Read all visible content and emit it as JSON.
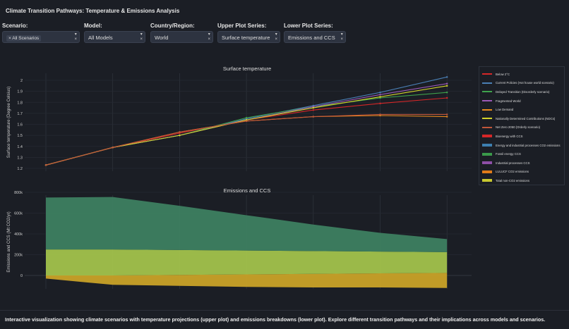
{
  "header": {
    "title": "Climate Transition Pathways: Temperature & Emissions Analysis"
  },
  "filters": [
    {
      "label": "Scenario:",
      "value": "All Scenarios",
      "chip": true
    },
    {
      "label": "Model:",
      "value": "All Models"
    },
    {
      "label": "Country/Region:",
      "value": "World"
    },
    {
      "label": "Upper Plot Series:",
      "value": "Surface temperature"
    },
    {
      "label": "Lower Plot Series:",
      "value": "Emissions and CCS"
    }
  ],
  "chart_data": [
    {
      "type": "line",
      "title": "Surface temperature",
      "ylabel": "Surface temperature (Degree Celsius)",
      "ylim": [
        1.18,
        2.08
      ],
      "yticks": [
        1.2,
        1.3,
        1.4,
        1.5,
        1.6,
        1.7,
        1.8,
        1.9,
        2
      ],
      "grid": true,
      "series": [
        {
          "name": "Below 2°C",
          "color": "#d62728",
          "values": [
            1.23,
            1.39,
            1.52,
            1.64,
            1.73,
            1.79,
            1.84
          ]
        },
        {
          "name": "Current Policies (Hot house world scenario)",
          "color": "#4a7fb5",
          "values": [
            1.23,
            1.39,
            1.5,
            1.65,
            1.77,
            1.89,
            2.03
          ]
        },
        {
          "name": "Delayed Transition (Disorderly scenario)",
          "color": "#3fa34d",
          "values": [
            1.23,
            1.39,
            1.5,
            1.66,
            1.76,
            1.84,
            1.89
          ]
        },
        {
          "name": "Fragmented World",
          "color": "#9b59b6",
          "values": [
            1.23,
            1.39,
            1.5,
            1.64,
            1.76,
            1.87,
            1.97
          ]
        },
        {
          "name": "Low Demand",
          "color": "#e8891c",
          "values": [
            1.23,
            1.39,
            1.53,
            1.63,
            1.67,
            1.68,
            1.67
          ]
        },
        {
          "name": "Nationally Determined Contributions (NDCs)",
          "color": "#d4d42a",
          "values": [
            1.23,
            1.39,
            1.5,
            1.64,
            1.75,
            1.85,
            1.95
          ]
        },
        {
          "name": "Net Zero 2050 (Orderly scenario)",
          "color": "#c0563a",
          "values": [
            1.23,
            1.39,
            1.53,
            1.63,
            1.67,
            1.69,
            1.69
          ]
        }
      ]
    },
    {
      "type": "area",
      "title": "Emissions and CCS",
      "ylabel": "Emissions and CCS (Mt CO2/yr)",
      "ylim": [
        -170000,
        830000
      ],
      "yticks": [
        0,
        200000,
        400000,
        600000,
        800000
      ],
      "ytick_labels": [
        "0",
        "200k",
        "400k",
        "600k",
        "800k"
      ],
      "grid": true,
      "stacked": true,
      "series": [
        {
          "name": "Bioenergy with CCS",
          "color": "#d62728"
        },
        {
          "name": "Energy and industrial processes CO2 emissions",
          "color": "#3d7fb0"
        },
        {
          "name": "Fossil energy CCS",
          "color": "#3a9a4a"
        },
        {
          "name": "Industrial processes CCS",
          "color": "#8e4fa8"
        },
        {
          "name": "LULUCF CO2 emissions",
          "color": "#e07b1a"
        },
        {
          "name": "Total non-CO2 emissions",
          "color": "#c8c830"
        }
      ],
      "bands": [
        {
          "color": "#c9a227",
          "lower": [
            -30000,
            -90000,
            -100000,
            -110000,
            -115000,
            -115000,
            -120000
          ],
          "upper": [
            0,
            0,
            5000,
            10000,
            15000,
            20000,
            25000
          ]
        },
        {
          "color": "#a2c24b",
          "lower": [
            0,
            0,
            5000,
            10000,
            15000,
            20000,
            25000
          ],
          "upper": [
            250000,
            250000,
            245000,
            240000,
            235000,
            230000,
            225000
          ]
        },
        {
          "color": "#3d8060",
          "lower": [
            250000,
            250000,
            245000,
            240000,
            235000,
            230000,
            225000
          ],
          "upper": [
            750000,
            755000,
            670000,
            580000,
            490000,
            410000,
            350000
          ]
        }
      ]
    }
  ],
  "footer": {
    "text": "Interactive visualization showing climate scenarios with temperature projections (upper plot) and emissions breakdowns (lower plot). Explore different transition pathways and their implications across models and scenarios."
  }
}
